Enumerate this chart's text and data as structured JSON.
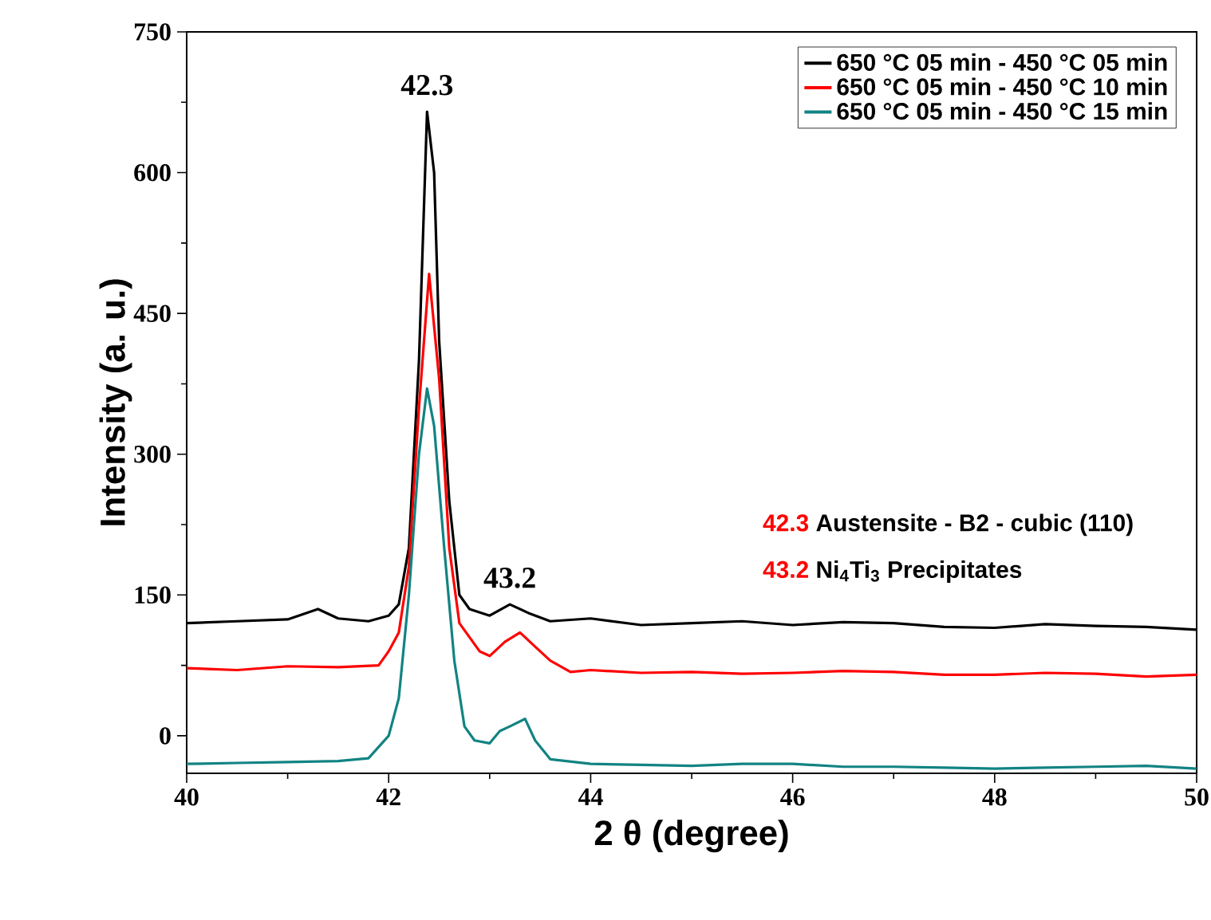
{
  "chart_data": {
    "type": "line",
    "xlabel": "2 θ (degree)",
    "ylabel": "Intensity (a. u.)",
    "xlim": [
      40,
      50
    ],
    "ylim": [
      -40,
      750
    ],
    "xticks": [
      40,
      42,
      44,
      46,
      48,
      50
    ],
    "yticks": [
      0,
      150,
      300,
      450,
      600,
      750
    ],
    "legend": "top right",
    "grid": false,
    "marker": "none",
    "line_style": "solid",
    "annotations": [
      {
        "text": "42.3",
        "x": 42.38,
        "y": 665
      },
      {
        "text": "43.2",
        "x": 43.2,
        "y": 140
      },
      "42.3",
      "Austensite - B2 - cubic (110)",
      "43.2",
      "Ni$_{4}$Ti$_{3}$ Precipitates"
    ],
    "series": [
      {
        "name": "650 °C 05 min - 450 °C 05 min",
        "color": "#000000",
        "x": [
          40,
          40.5,
          41,
          41.3,
          41.5,
          41.8,
          42.0,
          42.1,
          42.2,
          42.3,
          42.38,
          42.45,
          42.5,
          42.6,
          42.7,
          42.8,
          43.0,
          43.2,
          43.4,
          43.6,
          44,
          44.5,
          45,
          45.5,
          46,
          46.5,
          47,
          47.5,
          48,
          48.5,
          49,
          49.5,
          50
        ],
        "values": [
          120,
          122,
          124,
          135,
          125,
          122,
          128,
          140,
          200,
          400,
          665,
          600,
          420,
          250,
          150,
          135,
          128,
          140,
          130,
          122,
          125,
          118,
          120,
          122,
          118,
          121,
          120,
          116,
          115,
          119,
          117,
          116,
          113
        ]
      },
      {
        "name": "650 °C 05 min - 450 °C 10 min",
        "color": "#ff0000",
        "x": [
          40,
          40.5,
          41,
          41.5,
          41.9,
          42.0,
          42.1,
          42.2,
          42.3,
          42.4,
          42.5,
          42.6,
          42.7,
          42.9,
          43.0,
          43.15,
          43.3,
          43.45,
          43.6,
          43.8,
          44,
          44.5,
          45,
          45.5,
          46,
          46.5,
          47,
          47.5,
          48,
          48.5,
          49,
          49.5,
          50
        ],
        "values": [
          72,
          70,
          74,
          73,
          75,
          90,
          110,
          180,
          350,
          492,
          380,
          200,
          120,
          90,
          85,
          100,
          110,
          95,
          80,
          68,
          70,
          67,
          68,
          66,
          67,
          69,
          68,
          65,
          65,
          67,
          66,
          63,
          65
        ]
      },
      {
        "name": "650 °C 05 min - 450 °C 15 min",
        "color": "#128383",
        "x": [
          40,
          40.5,
          41,
          41.5,
          41.8,
          42.0,
          42.1,
          42.2,
          42.3,
          42.38,
          42.45,
          42.55,
          42.65,
          42.75,
          42.85,
          43.0,
          43.1,
          43.2,
          43.35,
          43.45,
          43.6,
          44,
          44.5,
          45,
          45.5,
          46,
          46.5,
          47,
          47.5,
          48,
          48.5,
          49,
          49.5,
          50
        ],
        "values": [
          -30,
          -29,
          -28,
          -27,
          -24,
          0,
          40,
          150,
          300,
          370,
          330,
          200,
          80,
          10,
          -5,
          -8,
          5,
          10,
          18,
          -5,
          -25,
          -30,
          -31,
          -32,
          -30,
          -30,
          -33,
          -33,
          -34,
          -35,
          -34,
          -33,
          -32,
          -35
        ]
      }
    ]
  }
}
